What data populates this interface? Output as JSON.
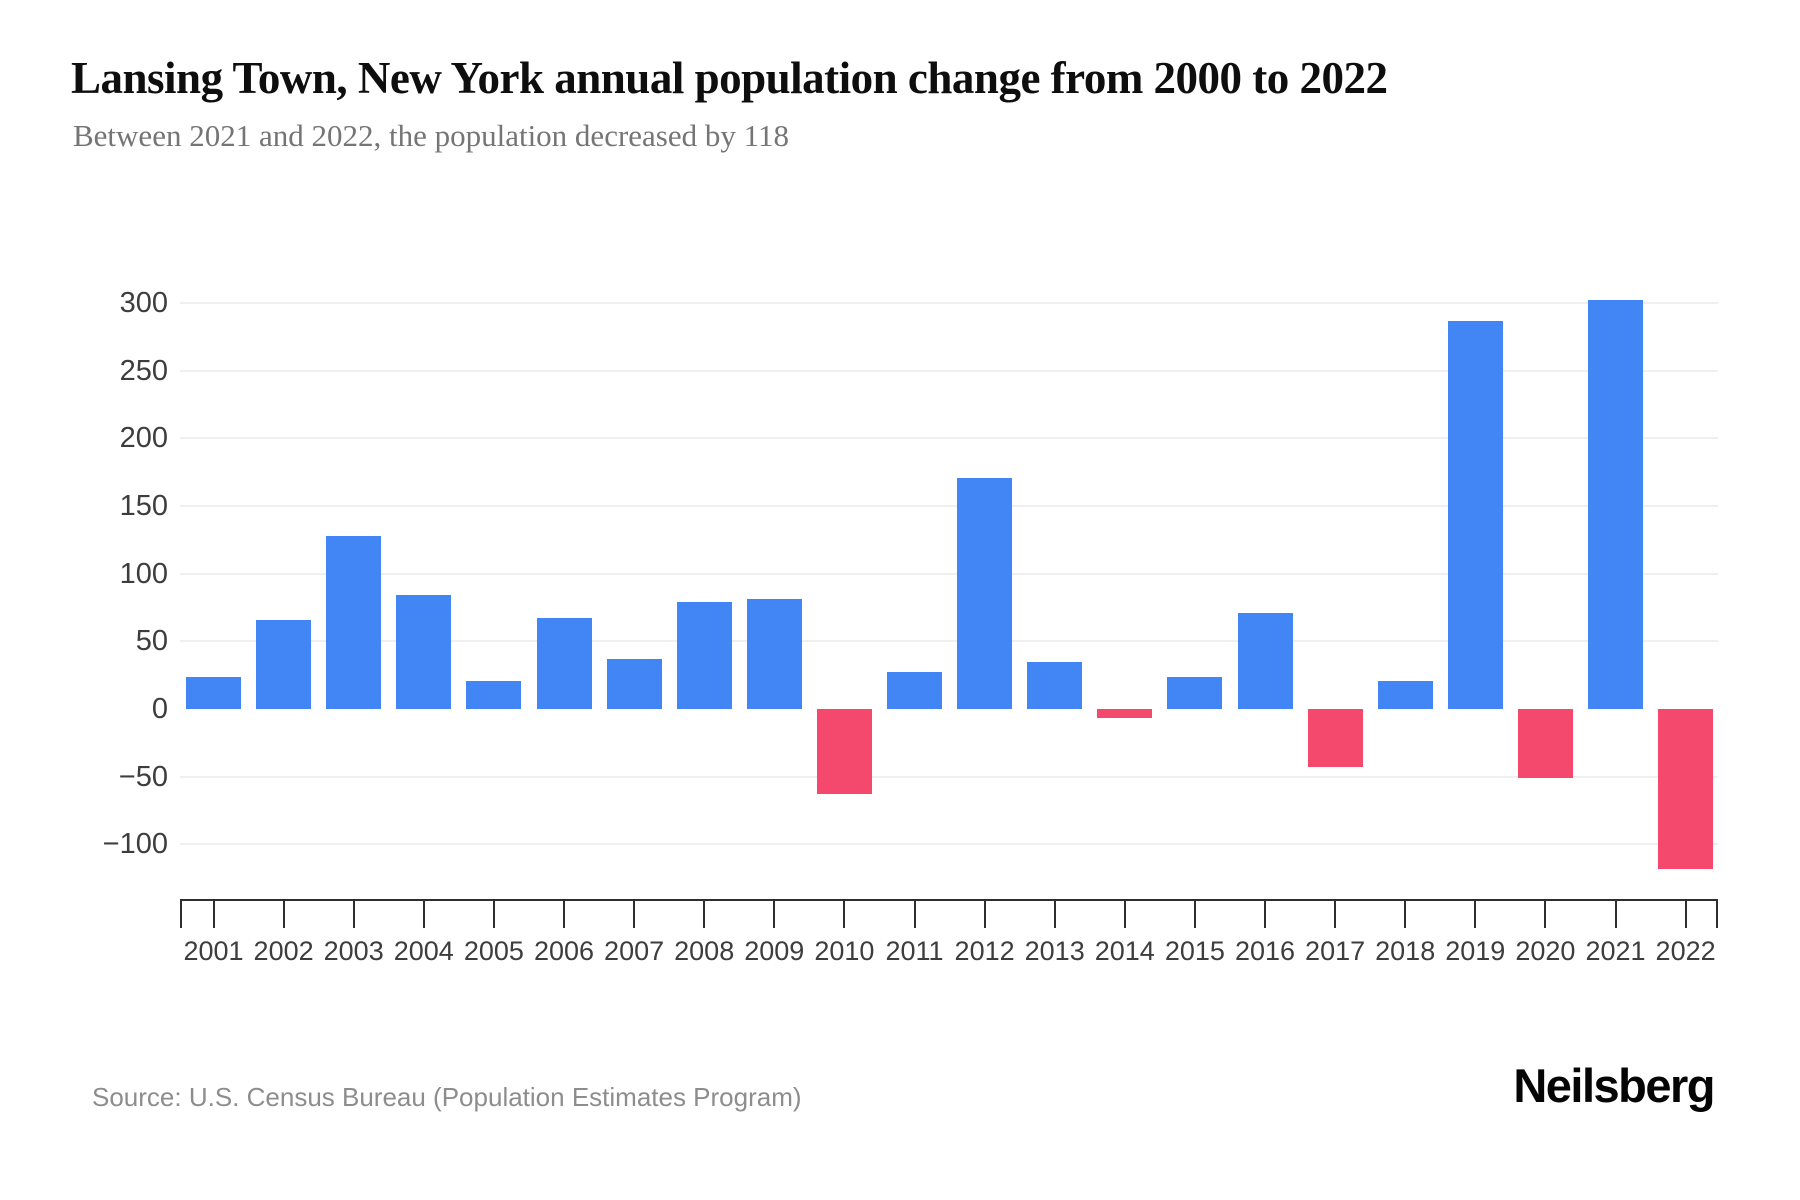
{
  "header": {
    "title": "Lansing Town, New York annual population change from 2000 to 2022",
    "subtitle": "Between 2021 and 2022, the population decreased by 118"
  },
  "footer": {
    "source_note": "Source: U.S. Census Bureau (Population Estimates Program)",
    "brand_logo": "Neilsberg"
  },
  "colors": {
    "positive_bar": "#4285F4",
    "negative_bar": "#F4496C",
    "gridline": "#efefef",
    "axis": "#2e2e2e",
    "tick_label": "#3d3d3d"
  },
  "chart_data": {
    "type": "bar",
    "title": "Lansing Town, New York annual population change from 2000 to 2022",
    "xlabel": "",
    "ylabel": "",
    "categories": [
      "2001",
      "2002",
      "2003",
      "2004",
      "2005",
      "2006",
      "2007",
      "2008",
      "2009",
      "2010",
      "2011",
      "2012",
      "2013",
      "2014",
      "2015",
      "2016",
      "2017",
      "2018",
      "2019",
      "2020",
      "2021",
      "2022"
    ],
    "values": [
      24,
      66,
      128,
      84,
      21,
      67,
      37,
      79,
      81,
      -63,
      27,
      171,
      35,
      -7,
      24,
      71,
      -43,
      21,
      287,
      -51,
      302,
      -118
    ],
    "ytick_values": [
      300,
      250,
      200,
      150,
      100,
      50,
      0,
      -50,
      -100
    ],
    "ytick_labels": [
      "300",
      "250",
      "200",
      "150",
      "100",
      "50",
      "0",
      "−50",
      "−100"
    ],
    "ylim": [
      -150,
      320
    ],
    "grid": true,
    "grid_skip_zero": true,
    "legend": false,
    "bar_color_rule": "blue for positive, pink-red for negative"
  }
}
